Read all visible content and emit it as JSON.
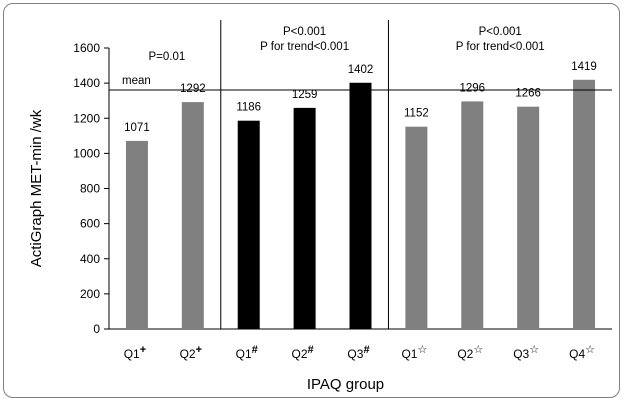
{
  "chart_data": {
    "type": "bar",
    "ylabel": "ActiGraph MET-min /wk",
    "xlabel": "IPAQ group",
    "ylim": [
      0,
      1600
    ],
    "yticks": [
      0,
      200,
      400,
      600,
      800,
      1000,
      1200,
      1400,
      1600
    ],
    "grid": false,
    "mean_line": {
      "label": "mean"
    },
    "groups": [
      {
        "stat_p": "P=0.01",
        "stat_trend": "",
        "bars": [
          {
            "base": "Q1",
            "mark": "+",
            "value": 1071,
            "label": "1071"
          },
          {
            "base": "Q2",
            "mark": "+",
            "value": 1292,
            "label": "1292"
          }
        ]
      },
      {
        "stat_p": "P<0.001",
        "stat_trend": "P for trend<0.001",
        "bars": [
          {
            "base": "Q1",
            "mark": "#",
            "value": 1186,
            "label": "1186"
          },
          {
            "base": "Q2",
            "mark": "#",
            "value": 1259,
            "label": "1259"
          },
          {
            "base": "Q3",
            "mark": "#",
            "value": 1402,
            "label": "1402"
          }
        ]
      },
      {
        "stat_p": "P<0.001",
        "stat_trend": "P for trend<0.001",
        "bars": [
          {
            "base": "Q1",
            "mark": "☆",
            "value": 1152,
            "label": "1152"
          },
          {
            "base": "Q2",
            "mark": "☆",
            "value": 1296,
            "label": "1296"
          },
          {
            "base": "Q3",
            "mark": "☆",
            "value": 1266,
            "label": "1266"
          },
          {
            "base": "Q4",
            "mark": "☆",
            "value": 1419,
            "label": "1419"
          }
        ]
      }
    ]
  },
  "colors": {
    "gray_bar": "#808080",
    "black_bar": "#000000",
    "axis": "#000000"
  }
}
